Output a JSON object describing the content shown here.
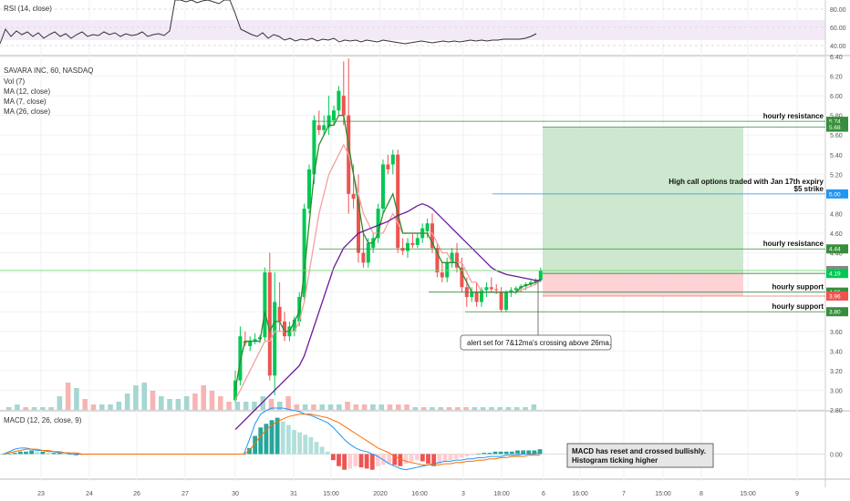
{
  "chart_data": [
    {
      "type": "line",
      "panel": "rsi",
      "indicator_label": "RSI (14, close)",
      "ylim": [
        30,
        90
      ],
      "ticks": [
        "80.00",
        "60.00",
        "40.00"
      ],
      "x": [
        0,
        6,
        12,
        18,
        24,
        30,
        36,
        42,
        48,
        54,
        60,
        66,
        72,
        78,
        84,
        90,
        96,
        102,
        108,
        114,
        120,
        126,
        132,
        138,
        144,
        150,
        156,
        162,
        168,
        174,
        180,
        186,
        192,
        198,
        204,
        210,
        216,
        222,
        228,
        234,
        240,
        246,
        252,
        258,
        264,
        270,
        276,
        282,
        288,
        294,
        300,
        306,
        312,
        318,
        324,
        330,
        336,
        342,
        348,
        354,
        360,
        366,
        372,
        378,
        384,
        390,
        396,
        402,
        408,
        414,
        420,
        426,
        432,
        438,
        444,
        450,
        456,
        462,
        468,
        474,
        480,
        486,
        492,
        498,
        504,
        510,
        516,
        522,
        528,
        534,
        540,
        546,
        552,
        558,
        564,
        570,
        576,
        582,
        588
      ],
      "values": [
        42,
        58,
        50,
        56,
        52,
        55,
        50,
        54,
        48,
        52,
        55,
        50,
        53,
        48,
        52,
        55,
        50,
        52,
        51,
        55,
        52,
        54,
        50,
        53,
        51,
        52,
        55,
        50,
        52,
        53,
        51,
        56,
        92,
        90,
        88,
        91,
        87,
        89,
        90,
        88,
        86,
        90,
        92,
        75,
        58,
        55,
        52,
        50,
        54,
        48,
        52,
        50,
        46,
        48,
        45,
        47,
        46,
        48,
        45,
        47,
        46,
        48,
        44,
        46,
        45,
        46,
        44,
        46,
        45,
        44,
        46,
        45,
        44,
        43,
        42,
        43,
        44,
        45,
        44,
        43,
        44,
        45,
        44,
        45,
        44,
        45,
        46,
        45,
        46,
        45,
        46,
        46,
        47,
        47,
        47,
        47,
        48,
        50,
        53
      ]
    },
    {
      "type": "candlestick",
      "panel": "price",
      "symbol_label": "SAVARA INC, 60, NASDAQ",
      "indicator_labels": [
        "Vol (7)",
        "MA (12, close)",
        "MA (7, close)",
        "MA (26, close)"
      ],
      "ylim": [
        2.8,
        6.4
      ],
      "ticks": [
        "6.40",
        "6.20",
        "6.00",
        "5.80",
        "5.60",
        "5.40",
        "5.20",
        "5.00",
        "4.80",
        "4.60",
        "4.40",
        "4.20",
        "4.00",
        "3.80",
        "3.60",
        "3.40",
        "3.20",
        "3.00",
        "2.80"
      ],
      "x_ticks": [
        "23",
        "24",
        "26",
        "27",
        "30",
        "31",
        "15:00",
        "2020",
        "16:00",
        "3",
        "18:00",
        "6",
        "16:00",
        "7",
        "15:00",
        "8",
        "15:00",
        "9"
      ],
      "candles": [
        {
          "o": 2.9,
          "h": 3.2,
          "l": 2.88,
          "c": 3.1
        },
        {
          "o": 3.1,
          "h": 3.65,
          "l": 3.05,
          "c": 3.55
        },
        {
          "o": 3.5,
          "h": 3.6,
          "l": 3.45,
          "c": 3.48
        },
        {
          "o": 3.45,
          "h": 3.55,
          "l": 3.4,
          "c": 3.5
        },
        {
          "o": 3.5,
          "h": 3.58,
          "l": 3.47,
          "c": 3.52
        },
        {
          "o": 3.52,
          "h": 3.56,
          "l": 3.48,
          "c": 3.54
        },
        {
          "o": 3.54,
          "h": 4.25,
          "l": 3.5,
          "c": 4.2
        },
        {
          "o": 4.2,
          "h": 4.4,
          "l": 3.1,
          "c": 3.15
        },
        {
          "o": 3.15,
          "h": 4.2,
          "l": 2.95,
          "c": 3.9
        },
        {
          "o": 3.85,
          "h": 4.1,
          "l": 3.6,
          "c": 3.7
        },
        {
          "o": 3.7,
          "h": 3.8,
          "l": 3.5,
          "c": 3.55
        },
        {
          "o": 3.55,
          "h": 3.7,
          "l": 3.5,
          "c": 3.65
        },
        {
          "o": 3.6,
          "h": 3.75,
          "l": 3.55,
          "c": 3.72
        },
        {
          "o": 3.7,
          "h": 4.0,
          "l": 3.65,
          "c": 3.95
        },
        {
          "o": 3.95,
          "h": 4.9,
          "l": 3.9,
          "c": 4.85
        },
        {
          "o": 4.85,
          "h": 5.3,
          "l": 4.8,
          "c": 5.25
        },
        {
          "o": 5.2,
          "h": 5.8,
          "l": 5.1,
          "c": 5.75
        },
        {
          "o": 5.7,
          "h": 5.85,
          "l": 5.6,
          "c": 5.65
        },
        {
          "o": 5.65,
          "h": 5.8,
          "l": 5.6,
          "c": 5.7
        },
        {
          "o": 5.68,
          "h": 6.0,
          "l": 5.6,
          "c": 5.8
        },
        {
          "o": 5.75,
          "h": 5.9,
          "l": 5.7,
          "c": 5.85
        },
        {
          "o": 5.85,
          "h": 6.1,
          "l": 5.8,
          "c": 6.05
        },
        {
          "o": 6.0,
          "h": 6.35,
          "l": 5.7,
          "c": 5.8
        },
        {
          "o": 5.8,
          "h": 6.38,
          "l": 4.8,
          "c": 5.0
        },
        {
          "o": 5.0,
          "h": 5.3,
          "l": 4.85,
          "c": 4.95
        },
        {
          "o": 4.95,
          "h": 5.2,
          "l": 4.3,
          "c": 4.4
        },
        {
          "o": 4.4,
          "h": 4.6,
          "l": 4.25,
          "c": 4.3
        },
        {
          "o": 4.3,
          "h": 4.55,
          "l": 4.25,
          "c": 4.5
        },
        {
          "o": 4.45,
          "h": 4.6,
          "l": 4.4,
          "c": 4.55
        },
        {
          "o": 4.55,
          "h": 4.9,
          "l": 4.5,
          "c": 4.85
        },
        {
          "o": 4.85,
          "h": 5.35,
          "l": 4.8,
          "c": 5.3
        },
        {
          "o": 5.3,
          "h": 5.4,
          "l": 5.2,
          "c": 5.25
        },
        {
          "o": 5.3,
          "h": 5.45,
          "l": 5.2,
          "c": 5.4
        },
        {
          "o": 5.4,
          "h": 5.45,
          "l": 4.4,
          "c": 4.45
        },
        {
          "o": 4.45,
          "h": 4.55,
          "l": 4.38,
          "c": 4.42
        },
        {
          "o": 4.42,
          "h": 4.55,
          "l": 4.35,
          "c": 4.5
        },
        {
          "o": 4.5,
          "h": 4.6,
          "l": 4.45,
          "c": 4.48
        },
        {
          "o": 4.48,
          "h": 4.6,
          "l": 4.45,
          "c": 4.55
        },
        {
          "o": 4.55,
          "h": 4.7,
          "l": 4.5,
          "c": 4.65
        },
        {
          "o": 4.62,
          "h": 4.75,
          "l": 4.55,
          "c": 4.7
        },
        {
          "o": 4.7,
          "h": 4.8,
          "l": 4.4,
          "c": 4.45
        },
        {
          "o": 4.45,
          "h": 4.5,
          "l": 4.15,
          "c": 4.2
        },
        {
          "o": 4.2,
          "h": 4.3,
          "l": 4.1,
          "c": 4.15
        },
        {
          "o": 4.15,
          "h": 4.35,
          "l": 4.1,
          "c": 4.3
        },
        {
          "o": 4.3,
          "h": 4.45,
          "l": 4.25,
          "c": 4.4
        },
        {
          "o": 4.4,
          "h": 4.5,
          "l": 4.2,
          "c": 4.25
        },
        {
          "o": 4.25,
          "h": 4.35,
          "l": 4.0,
          "c": 4.05
        },
        {
          "o": 4.05,
          "h": 4.15,
          "l": 3.85,
          "c": 3.95
        },
        {
          "o": 3.95,
          "h": 4.05,
          "l": 3.9,
          "c": 4.0
        },
        {
          "o": 4.0,
          "h": 4.1,
          "l": 3.85,
          "c": 3.9
        },
        {
          "o": 3.9,
          "h": 4.05,
          "l": 3.85,
          "c": 4.02
        },
        {
          "o": 4.02,
          "h": 4.1,
          "l": 3.95,
          "c": 4.05
        },
        {
          "o": 4.05,
          "h": 4.15,
          "l": 4.0,
          "c": 4.03
        },
        {
          "o": 4.03,
          "h": 4.08,
          "l": 3.98,
          "c": 4.02
        },
        {
          "o": 4.0,
          "h": 4.05,
          "l": 3.8,
          "c": 3.82
        },
        {
          "o": 3.82,
          "h": 4.02,
          "l": 3.8,
          "c": 4.0
        },
        {
          "o": 4.0,
          "h": 4.05,
          "l": 3.95,
          "c": 4.02
        },
        {
          "o": 4.02,
          "h": 4.06,
          "l": 3.98,
          "c": 4.04
        },
        {
          "o": 4.04,
          "h": 4.08,
          "l": 4.0,
          "c": 4.06
        },
        {
          "o": 4.06,
          "h": 4.1,
          "l": 4.02,
          "c": 4.08
        },
        {
          "o": 4.08,
          "h": 4.12,
          "l": 4.05,
          "c": 4.1
        },
        {
          "o": 4.1,
          "h": 4.14,
          "l": 4.07,
          "c": 4.12
        },
        {
          "o": 4.12,
          "h": 4.25,
          "l": 4.1,
          "c": 4.22
        }
      ],
      "ma_short": [
        3.0,
        3.3,
        3.5,
        3.5,
        3.5,
        3.5,
        3.8,
        3.6,
        3.7,
        3.7,
        3.6,
        3.6,
        3.7,
        3.8,
        4.2,
        4.7,
        5.2,
        5.5,
        5.6,
        5.7,
        5.7,
        5.8,
        5.8,
        5.5,
        5.2,
        4.9,
        4.6,
        4.5,
        4.5,
        4.6,
        4.8,
        4.9,
        5.0,
        4.8,
        4.6,
        4.6,
        4.6,
        4.6,
        4.6,
        4.6,
        4.5,
        4.4,
        4.3,
        4.3,
        4.3,
        4.3,
        4.2,
        4.1,
        4.0,
        4.0,
        4.0,
        4.0,
        4.0,
        4.0,
        4.0,
        4.0,
        4.0,
        4.0,
        4.05,
        4.07,
        4.08,
        4.1,
        4.13
      ],
      "ma_mid": [
        2.9,
        3.0,
        3.1,
        3.2,
        3.3,
        3.4,
        3.5,
        3.5,
        3.6,
        3.6,
        3.6,
        3.6,
        3.6,
        3.7,
        3.9,
        4.2,
        4.5,
        4.8,
        5.0,
        5.2,
        5.3,
        5.4,
        5.5,
        5.4,
        5.2,
        5.0,
        4.8,
        4.7,
        4.6,
        4.6,
        4.6,
        4.7,
        4.8,
        4.7,
        4.6,
        4.6,
        4.6,
        4.6,
        4.6,
        4.6,
        4.6,
        4.5,
        4.4,
        4.4,
        4.3,
        4.3,
        4.3,
        4.2,
        4.1,
        4.1,
        4.0,
        4.0,
        4.0,
        4.0,
        4.0,
        4.0,
        4.0,
        4.0,
        4.02,
        4.04,
        4.06,
        4.08,
        4.12
      ],
      "ma_long": [
        2.6,
        2.65,
        2.7,
        2.75,
        2.8,
        2.85,
        2.9,
        2.95,
        3.0,
        3.05,
        3.1,
        3.15,
        3.2,
        3.25,
        3.35,
        3.5,
        3.65,
        3.8,
        3.95,
        4.1,
        4.25,
        4.35,
        4.45,
        4.5,
        4.55,
        4.6,
        4.62,
        4.64,
        4.66,
        4.68,
        4.7,
        4.72,
        4.75,
        4.78,
        4.8,
        4.82,
        4.85,
        4.88,
        4.9,
        4.88,
        4.85,
        4.8,
        4.75,
        4.7,
        4.65,
        4.6,
        4.55,
        4.5,
        4.45,
        4.4,
        4.35,
        4.3,
        4.25,
        4.22,
        4.2,
        4.18,
        4.17,
        4.16,
        4.15,
        4.14,
        4.13,
        4.12,
        4.12
      ],
      "volume": [
        0.1,
        0.2,
        0.1,
        0.1,
        0.1,
        0.1,
        0.5,
        1.0,
        0.8,
        0.4,
        0.2,
        0.2,
        0.2,
        0.3,
        0.6,
        0.9,
        1.0,
        0.7,
        0.5,
        0.4,
        0.4,
        0.5,
        0.6,
        0.9,
        0.7,
        0.5,
        0.3,
        0.3,
        0.3,
        0.3,
        0.5,
        0.4,
        0.3,
        0.5,
        0.2,
        0.2,
        0.2,
        0.2,
        0.2,
        0.2,
        0.3,
        0.2,
        0.2,
        0.2,
        0.2,
        0.2,
        0.2,
        0.2,
        0.1,
        0.1,
        0.1,
        0.1,
        0.1,
        0.1,
        0.1,
        0.1,
        0.1,
        0.1,
        0.1,
        0.1,
        0.1,
        0.1,
        0.2
      ],
      "horizontal_levels": [
        {
          "name": "hourly resistance",
          "value": 5.74,
          "tag": "5.74"
        },
        {
          "name": "",
          "value": 5.68,
          "tag": "5.68"
        },
        {
          "name": "hourly resistance",
          "value": 4.44,
          "tag": "4.44"
        },
        {
          "name": "",
          "value": 4.22,
          "tag": "4.22"
        },
        {
          "name": "",
          "value": 4.19,
          "tag": "4.19"
        },
        {
          "name": "hourly support",
          "value": 4.0,
          "tag": "4.00"
        },
        {
          "name": "",
          "value": 3.96,
          "tag": "3.96"
        },
        {
          "name": "hourly support",
          "value": 3.8,
          "tag": "3.80"
        }
      ],
      "strike_line": {
        "value": 5.0,
        "tag": "5.00",
        "text_line1": "High call options traded with Jan 17th expiry",
        "text_line2": "$5 strike"
      },
      "position": {
        "entry": 4.19,
        "target": 5.68,
        "stop": 3.96
      },
      "alert_note": "alert set for 7&12ma's crossing above 26ma."
    },
    {
      "type": "bar",
      "panel": "macd",
      "indicator_label": "MACD (12, 26, close, 9)",
      "ylim": [
        -0.2,
        0.35
      ],
      "ticks": [
        "0.00"
      ],
      "histogram": [
        0.0,
        0.0,
        0.01,
        0.02,
        0.02,
        0.03,
        0.02,
        0.02,
        0.01,
        0.01,
        0.01,
        0.0,
        0.0,
        -0.01,
        -0.01,
        -0.01,
        0.0,
        0.0,
        0.0,
        0.0,
        0.0,
        0.0,
        0.0,
        0.0,
        0.0,
        0.0,
        0.0,
        0.0,
        0.0,
        0.0,
        0.0,
        0.0,
        0.0,
        0.0,
        0.0,
        0.0,
        0.0,
        0.0,
        0.0,
        0.0,
        0.0,
        0.0,
        0.0,
        0.0,
        0.05,
        0.15,
        0.22,
        0.25,
        0.28,
        0.3,
        0.27,
        0.24,
        0.2,
        0.18,
        0.16,
        0.14,
        0.1,
        0.06,
        0.02,
        -0.05,
        -0.1,
        -0.13,
        -0.12,
        -0.1,
        -0.11,
        -0.12,
        -0.13,
        -0.1,
        -0.09,
        -0.08,
        -0.09,
        -0.1,
        -0.08,
        -0.06,
        -0.05,
        -0.06,
        -0.08,
        -0.1,
        -0.08,
        -0.06,
        -0.05,
        -0.04,
        -0.03,
        -0.02,
        -0.01,
        0.0,
        0.01,
        0.01,
        0.02,
        0.02,
        0.02,
        0.02,
        0.03,
        0.03,
        0.03,
        0.03,
        0.04
      ],
      "macd_line": [
        0.0,
        0.02,
        0.04,
        0.05,
        0.05,
        0.04,
        0.03,
        0.03,
        0.02,
        0.02,
        0.01,
        0.01,
        0.0,
        0.0,
        0.0,
        0.0,
        0.0,
        0.0,
        0.0,
        0.0,
        0.0,
        0.0,
        0.0,
        0.0,
        0.0,
        0.0,
        0.0,
        0.0,
        0.0,
        0.0,
        0.0,
        0.0,
        0.0,
        0.0,
        0.0,
        0.0,
        0.0,
        0.0,
        0.0,
        0.0,
        0.0,
        0.0,
        0.0,
        0.0,
        0.12,
        0.25,
        0.33,
        0.36,
        0.38,
        0.38,
        0.38,
        0.37,
        0.36,
        0.35,
        0.33,
        0.32,
        0.3,
        0.28,
        0.26,
        0.22,
        0.17,
        0.12,
        0.08,
        0.05,
        0.03,
        0.02,
        0.0,
        -0.02,
        -0.05,
        -0.08,
        -0.1,
        -0.12,
        -0.13,
        -0.12,
        -0.11,
        -0.1,
        -0.09,
        -0.08,
        -0.07,
        -0.06,
        -0.06,
        -0.05,
        -0.05,
        -0.04,
        -0.04,
        -0.03,
        -0.03,
        -0.02,
        -0.02,
        -0.02,
        -0.01,
        -0.01,
        -0.01,
        0.0,
        0.0,
        0.0,
        0.01
      ],
      "signal_line": [
        0.0,
        0.01,
        0.02,
        0.03,
        0.04,
        0.04,
        0.04,
        0.03,
        0.03,
        0.02,
        0.02,
        0.01,
        0.01,
        0.01,
        0.0,
        0.0,
        0.0,
        0.0,
        0.0,
        0.0,
        0.0,
        0.0,
        0.0,
        0.0,
        0.0,
        0.0,
        0.0,
        0.0,
        0.0,
        0.0,
        0.0,
        0.0,
        0.0,
        0.0,
        0.0,
        0.0,
        0.0,
        0.0,
        0.0,
        0.0,
        0.0,
        0.0,
        0.0,
        0.0,
        0.03,
        0.09,
        0.15,
        0.2,
        0.24,
        0.27,
        0.29,
        0.31,
        0.32,
        0.33,
        0.33,
        0.33,
        0.32,
        0.31,
        0.3,
        0.28,
        0.26,
        0.23,
        0.2,
        0.17,
        0.14,
        0.11,
        0.08,
        0.05,
        0.03,
        0.01,
        -0.02,
        -0.04,
        -0.06,
        -0.07,
        -0.08,
        -0.09,
        -0.09,
        -0.09,
        -0.09,
        -0.08,
        -0.08,
        -0.07,
        -0.07,
        -0.06,
        -0.06,
        -0.05,
        -0.05,
        -0.04,
        -0.04,
        -0.03,
        -0.03,
        -0.02,
        -0.02,
        -0.02,
        -0.01,
        -0.01,
        -0.01
      ],
      "note_line1": "MACD has reset and crossed bullishly.",
      "note_line2": "Histogram ticking higher"
    }
  ],
  "colors": {
    "up": "#26a69a",
    "up_candle": "#00c853",
    "down": "#ef5350",
    "ma7": "#f4a0a0",
    "ma12": "#2e8b2e",
    "ma26": "#6a1b9a",
    "level": "#388e3c",
    "strike": "#2196f3",
    "target_zone": "#c8e6c9",
    "stop_zone": "#ffcdd2"
  }
}
